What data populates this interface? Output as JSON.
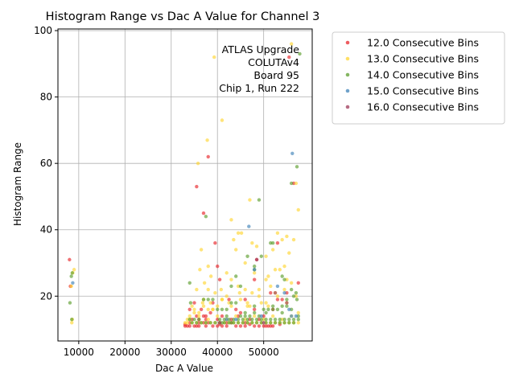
{
  "chart_data": {
    "type": "scatter",
    "title": "Histogram Range vs Dac A Value for Channel 3",
    "xlabel": "Dac A Value",
    "ylabel": "Histogram Range",
    "xlim": [
      5500,
      60500
    ],
    "ylim": [
      6.5,
      100.5
    ],
    "xticks": [
      10000,
      20000,
      30000,
      40000,
      50000
    ],
    "xtick_labels": [
      "10000",
      "20000",
      "30000",
      "40000",
      "50000"
    ],
    "yticks": [
      20,
      40,
      60,
      80,
      100
    ],
    "ytick_labels": [
      "20",
      "40",
      "60",
      "80",
      "100"
    ],
    "grid": true,
    "legend_position": "outside-right",
    "annotation": [
      "ATLAS Upgrade",
      "COLUTAv4",
      "Board 95",
      "Chip 1, Run 222"
    ],
    "series": [
      {
        "name": "12.0 Consecutive Bins",
        "color": "#e8262b",
        "points": [
          [
            8000,
            31
          ],
          [
            8200,
            23
          ],
          [
            37000,
            45
          ],
          [
            38000,
            62
          ],
          [
            35500,
            53
          ],
          [
            39500,
            36
          ],
          [
            40000,
            29
          ],
          [
            40500,
            25
          ],
          [
            48500,
            31
          ],
          [
            53000,
            19
          ],
          [
            54000,
            19
          ],
          [
            55500,
            92
          ],
          [
            56500,
            54
          ],
          [
            57500,
            24
          ],
          [
            33000,
            11
          ],
          [
            33500,
            11
          ],
          [
            34000,
            11
          ],
          [
            35000,
            11
          ],
          [
            35500,
            11
          ],
          [
            36000,
            11
          ],
          [
            37500,
            11
          ],
          [
            39000,
            11
          ],
          [
            40000,
            11
          ],
          [
            41000,
            11
          ],
          [
            42000,
            11
          ],
          [
            44000,
            11
          ],
          [
            45000,
            11
          ],
          [
            46000,
            11
          ],
          [
            48000,
            11
          ],
          [
            49000,
            11
          ],
          [
            50000,
            11
          ],
          [
            50500,
            11
          ],
          [
            51000,
            11
          ],
          [
            51500,
            11
          ],
          [
            52000,
            11
          ],
          [
            34000,
            12
          ],
          [
            36000,
            12
          ],
          [
            37000,
            12
          ],
          [
            38000,
            12
          ],
          [
            42000,
            12
          ],
          [
            43000,
            12
          ],
          [
            46000,
            12
          ],
          [
            34500,
            13
          ],
          [
            36000,
            13
          ],
          [
            37500,
            13
          ],
          [
            40000,
            13
          ],
          [
            43000,
            13
          ],
          [
            47000,
            13
          ],
          [
            49000,
            13
          ],
          [
            35500,
            14
          ],
          [
            37500,
            14
          ],
          [
            41000,
            14
          ],
          [
            44500,
            14
          ],
          [
            50000,
            14
          ],
          [
            34000,
            16
          ],
          [
            36500,
            16
          ],
          [
            44000,
            16
          ],
          [
            48000,
            16
          ],
          [
            52000,
            16
          ],
          [
            35000,
            18
          ],
          [
            39000,
            18
          ],
          [
            42500,
            19
          ],
          [
            46000,
            19
          ],
          [
            51500,
            21
          ],
          [
            55000,
            21
          ],
          [
            53000,
            36
          ],
          [
            48000,
            25
          ],
          [
            37000,
            14
          ],
          [
            38500,
            15
          ],
          [
            45000,
            15
          ],
          [
            33000,
            11.5
          ],
          [
            40500,
            11.5
          ],
          [
            47000,
            11.5
          ],
          [
            53500,
            11.5
          ]
        ]
      },
      {
        "name": "13.0 Consecutive Bins",
        "color": "#ffd633",
        "points": [
          [
            8500,
            12
          ],
          [
            8600,
            13
          ],
          [
            9000,
            28
          ],
          [
            8700,
            27
          ],
          [
            8400,
            23
          ],
          [
            36500,
            34
          ],
          [
            35800,
            60
          ],
          [
            37800,
            67
          ],
          [
            39300,
            92
          ],
          [
            41000,
            73
          ],
          [
            43000,
            43
          ],
          [
            43500,
            37
          ],
          [
            44500,
            39
          ],
          [
            45200,
            39
          ],
          [
            47000,
            49
          ],
          [
            47500,
            36
          ],
          [
            48000,
            27
          ],
          [
            38000,
            29
          ],
          [
            38600,
            26
          ],
          [
            36200,
            28
          ],
          [
            37200,
            24
          ],
          [
            38000,
            22
          ],
          [
            35500,
            22
          ],
          [
            36800,
            18
          ],
          [
            40800,
            22
          ],
          [
            42000,
            27
          ],
          [
            44800,
            21
          ],
          [
            46500,
            17
          ],
          [
            49500,
            18
          ],
          [
            50500,
            32
          ],
          [
            51500,
            23
          ],
          [
            52500,
            21
          ],
          [
            53000,
            39
          ],
          [
            54000,
            37
          ],
          [
            55000,
            38
          ],
          [
            56000,
            96
          ],
          [
            56500,
            37
          ],
          [
            57500,
            46
          ],
          [
            57000,
            54
          ],
          [
            55500,
            33
          ],
          [
            54500,
            29
          ],
          [
            53500,
            28
          ],
          [
            52500,
            28
          ],
          [
            51000,
            26
          ],
          [
            50500,
            25
          ],
          [
            49000,
            22
          ],
          [
            47500,
            21
          ],
          [
            46000,
            22
          ],
          [
            44500,
            23
          ],
          [
            43000,
            25
          ],
          [
            42000,
            20
          ],
          [
            41000,
            19
          ],
          [
            40000,
            17
          ],
          [
            39000,
            16
          ],
          [
            38000,
            16
          ],
          [
            37000,
            17
          ],
          [
            36000,
            15
          ],
          [
            35000,
            15
          ],
          [
            34000,
            14
          ],
          [
            33500,
            13
          ],
          [
            33000,
            12
          ],
          [
            33500,
            12
          ],
          [
            34500,
            12
          ],
          [
            35500,
            12
          ],
          [
            36500,
            12
          ],
          [
            37500,
            12
          ],
          [
            38500,
            12
          ],
          [
            39500,
            12
          ],
          [
            40500,
            12
          ],
          [
            41500,
            12
          ],
          [
            42500,
            12
          ],
          [
            43500,
            12
          ],
          [
            44500,
            12
          ],
          [
            45500,
            12
          ],
          [
            46500,
            12
          ],
          [
            47500,
            12
          ],
          [
            48500,
            12
          ],
          [
            49500,
            12
          ],
          [
            50500,
            12
          ],
          [
            51500,
            12
          ],
          [
            52500,
            12
          ],
          [
            53500,
            12
          ],
          [
            54500,
            12
          ],
          [
            55500,
            12
          ],
          [
            56500,
            12
          ],
          [
            57500,
            12
          ],
          [
            34000,
            13
          ],
          [
            38000,
            13
          ],
          [
            42000,
            13
          ],
          [
            46000,
            13
          ],
          [
            50000,
            13
          ],
          [
            54000,
            13
          ],
          [
            36000,
            14
          ],
          [
            40000,
            14
          ],
          [
            44000,
            14
          ],
          [
            48000,
            14
          ],
          [
            52000,
            14
          ],
          [
            56000,
            14
          ],
          [
            35000,
            16
          ],
          [
            39000,
            16
          ],
          [
            43000,
            17
          ],
          [
            47000,
            17
          ],
          [
            51000,
            17
          ],
          [
            55000,
            18
          ],
          [
            37000,
            19
          ],
          [
            41000,
            19
          ],
          [
            45000,
            19
          ],
          [
            49000,
            20
          ],
          [
            53000,
            20
          ],
          [
            57000,
            20
          ],
          [
            38500,
            18
          ],
          [
            42500,
            18
          ],
          [
            46500,
            18
          ],
          [
            50500,
            18
          ],
          [
            54500,
            22
          ],
          [
            56000,
            24
          ],
          [
            44000,
            34
          ],
          [
            46000,
            30
          ],
          [
            48500,
            35
          ],
          [
            52000,
            34
          ],
          [
            55000,
            25
          ],
          [
            39500,
            21
          ],
          [
            34500,
            17
          ],
          [
            57500,
            15
          ]
        ]
      },
      {
        "name": "14.0 Consecutive Bins",
        "color": "#5c9e2e",
        "points": [
          [
            8100,
            18
          ],
          [
            8500,
            13
          ],
          [
            8600,
            27
          ],
          [
            8400,
            26
          ],
          [
            37500,
            44
          ],
          [
            34000,
            24
          ],
          [
            34200,
            18
          ],
          [
            44000,
            26
          ],
          [
            45000,
            23
          ],
          [
            43000,
            23
          ],
          [
            46500,
            32
          ],
          [
            48000,
            28
          ],
          [
            48000,
            29
          ],
          [
            49000,
            49
          ],
          [
            49500,
            32
          ],
          [
            51500,
            36
          ],
          [
            52000,
            36
          ],
          [
            54000,
            26
          ],
          [
            54500,
            25
          ],
          [
            56000,
            54
          ],
          [
            57200,
            59
          ],
          [
            57800,
            93
          ],
          [
            56000,
            22
          ],
          [
            57000,
            21
          ],
          [
            57200,
            19
          ],
          [
            56500,
            20
          ],
          [
            55000,
            17
          ],
          [
            54000,
            17
          ],
          [
            53000,
            16
          ],
          [
            52000,
            16
          ],
          [
            51000,
            16
          ],
          [
            50500,
            15
          ],
          [
            49000,
            14
          ],
          [
            48000,
            15
          ],
          [
            47000,
            14
          ],
          [
            46000,
            14
          ],
          [
            45000,
            14
          ],
          [
            44000,
            18
          ],
          [
            43000,
            18
          ],
          [
            42000,
            16
          ],
          [
            41000,
            16
          ],
          [
            40000,
            16
          ],
          [
            39000,
            19
          ],
          [
            38000,
            19
          ],
          [
            37000,
            19
          ],
          [
            36000,
            13
          ],
          [
            35000,
            13
          ],
          [
            34000,
            13
          ],
          [
            34500,
            12
          ],
          [
            35500,
            12
          ],
          [
            36500,
            12
          ],
          [
            37500,
            12
          ],
          [
            38500,
            12
          ],
          [
            39500,
            12
          ],
          [
            40500,
            12
          ],
          [
            41500,
            12
          ],
          [
            42500,
            12
          ],
          [
            43500,
            12
          ],
          [
            44500,
            12
          ],
          [
            45500,
            12
          ],
          [
            46500,
            12
          ],
          [
            47500,
            12
          ],
          [
            48500,
            12
          ],
          [
            49500,
            12
          ],
          [
            50500,
            12
          ],
          [
            51500,
            12
          ],
          [
            52500,
            12
          ],
          [
            53500,
            12
          ],
          [
            54500,
            12
          ],
          [
            55500,
            12
          ],
          [
            56500,
            12
          ],
          [
            40500,
            13
          ],
          [
            41500,
            13
          ],
          [
            42500,
            13
          ],
          [
            43500,
            13
          ],
          [
            44500,
            13
          ],
          [
            45500,
            13
          ],
          [
            46500,
            13
          ],
          [
            47500,
            13
          ],
          [
            48500,
            13
          ],
          [
            49500,
            13
          ],
          [
            50500,
            13
          ],
          [
            51500,
            13
          ],
          [
            52500,
            13
          ],
          [
            53500,
            13
          ],
          [
            54500,
            13
          ],
          [
            55500,
            13
          ],
          [
            56500,
            13
          ],
          [
            57500,
            13
          ],
          [
            42000,
            14
          ],
          [
            46000,
            15
          ],
          [
            50000,
            16
          ],
          [
            54000,
            15
          ],
          [
            56000,
            16
          ],
          [
            48000,
            17
          ],
          [
            52000,
            17
          ],
          [
            55000,
            19
          ],
          [
            57500,
            14
          ],
          [
            41000,
            12
          ],
          [
            43000,
            12
          ]
        ]
      },
      {
        "name": "15.0 Consecutive Bins",
        "color": "#3f83b8",
        "points": [
          [
            8700,
            24
          ],
          [
            56200,
            63
          ],
          [
            46800,
            41
          ],
          [
            48000,
            28
          ],
          [
            53000,
            23
          ],
          [
            54500,
            21
          ],
          [
            55500,
            16
          ],
          [
            56000,
            14
          ],
          [
            57000,
            14
          ],
          [
            49500,
            14
          ],
          [
            44000,
            13
          ],
          [
            42000,
            13
          ]
        ]
      },
      {
        "name": "16.0 Consecutive Bins",
        "color": "#9e3a5a",
        "points": [
          [
            48500,
            31
          ],
          [
            52500,
            21
          ],
          [
            55000,
            18
          ],
          [
            40500,
            12
          ],
          [
            50000,
            12
          ]
        ]
      }
    ]
  }
}
